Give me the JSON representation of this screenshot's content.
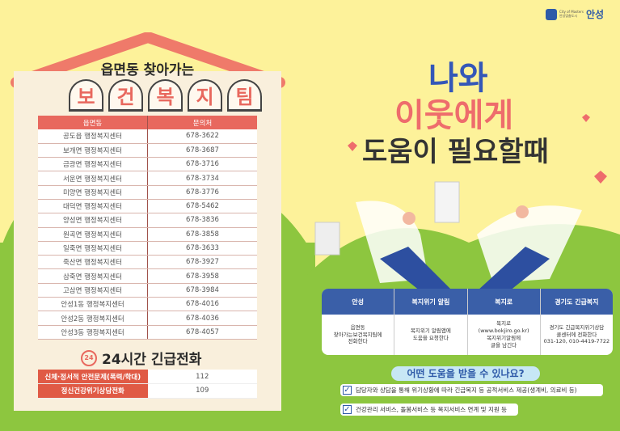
{
  "logo": {
    "en": "City of Masters",
    "ko_small": "안성맞춤도시",
    "ko_big": "안성"
  },
  "left": {
    "title_top": "읍면동 찾아가는",
    "title_chars": [
      "보",
      "건",
      "복",
      "지",
      "팀"
    ],
    "table": {
      "headers": [
        "읍면동",
        "문의처"
      ],
      "rows": [
        [
          "공도읍 행정복지센터",
          "678-3622"
        ],
        [
          "보개면 행정복지센터",
          "678-3687"
        ],
        [
          "금광면 행정복지센터",
          "678-3716"
        ],
        [
          "서운면 행정복지센터",
          "678-3734"
        ],
        [
          "미양면 행정복지센터",
          "678-3776"
        ],
        [
          "대덕면 행정복지센터",
          "678-5462"
        ],
        [
          "양성면 행정복지센터",
          "678-3836"
        ],
        [
          "원곡면 행정복지센터",
          "678-3858"
        ],
        [
          "일죽면 행정복지센터",
          "678-3633"
        ],
        [
          "죽산면 행정복지센터",
          "678-3927"
        ],
        [
          "삼죽면 행정복지센터",
          "678-3958"
        ],
        [
          "고삼면 행정복지센터",
          "678-3984"
        ],
        [
          "안성1동 행정복지센터",
          "678-4016"
        ],
        [
          "안성2동 행정복지센터",
          "678-4036"
        ],
        [
          "안성3동 행정복지센터",
          "678-4057"
        ]
      ]
    },
    "emergency_icon_text": "24",
    "emergency_title": "24시간 긴급전화",
    "emergency_rows": [
      [
        "신체·정서적 안전문제(폭력/학대)",
        "112"
      ],
      [
        "정신건강위기상담전화",
        "109"
      ]
    ]
  },
  "right": {
    "headline": [
      "나와",
      "이웃에게",
      "도움이 필요할때"
    ],
    "info_cols": [
      {
        "top": "안성",
        "text": [
          "읍면동",
          "찾아가는보건복지팀에",
          "전화한다"
        ]
      },
      {
        "top": "복지위기 알림",
        "text": [
          "복지위기 알림앱에",
          "도움을 요청한다"
        ]
      },
      {
        "top": "복지로",
        "text": [
          "복지로",
          "(www.bokjiro.go.kr)",
          "복지위기알림에",
          "글을 남긴다"
        ]
      },
      {
        "top": "경기도 긴급복지",
        "text": [
          "경기도 긴급복지위기상담",
          "콜센터에 전화한다",
          "031-120, 010-4419-7722"
        ]
      }
    ],
    "question": "어떤 도움을 받을 수 있나요?",
    "checks": [
      "담당자와 상담을 통해 위기상황에 따라 긴급복지 등 공적서비스 제공(생계비, 의료비 등)",
      "건강관리 서비스, 돌봄서비스 등 복지서비스 연계 및 지원 등"
    ]
  },
  "colors": {
    "yellow": "#fdf29a",
    "green": "#8dc63f",
    "coral": "#e8685e",
    "blue": "#3a5fa8"
  }
}
